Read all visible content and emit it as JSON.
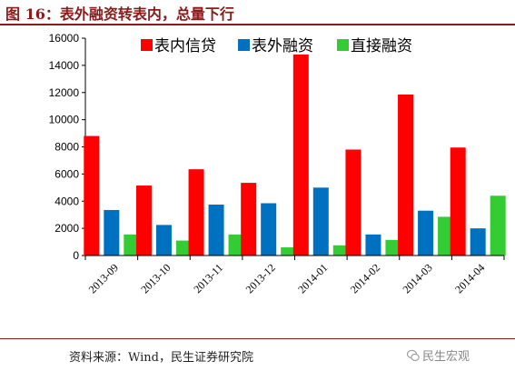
{
  "title": "图 16：表外融资转表内，总量下行",
  "source": "资料来源：Wind，民生证券研究院",
  "watermark": "民生宏观",
  "chart_data": {
    "type": "bar",
    "title": "",
    "xlabel": "",
    "ylabel": "",
    "ylim": [
      0,
      16000
    ],
    "yticks": [
      0,
      2000,
      4000,
      6000,
      8000,
      10000,
      12000,
      14000,
      16000
    ],
    "grid": false,
    "legend_position": "top-right",
    "categories": [
      "2013-09",
      "2013-10",
      "2013-11",
      "2013-12",
      "2014-01",
      "2014-02",
      "2014-03",
      "2014-04"
    ],
    "series": [
      {
        "name": "表内信贷",
        "color": "#FF0000",
        "values": [
          8800,
          5150,
          6350,
          5350,
          14800,
          7800,
          11850,
          7950
        ]
      },
      {
        "name": "表外融资",
        "color": "#0070C0",
        "values": [
          3350,
          2250,
          3750,
          3850,
          5000,
          1550,
          3300,
          2000
        ]
      },
      {
        "name": "直接融资",
        "color": "#33CC33",
        "values": [
          1550,
          1100,
          1550,
          600,
          750,
          1150,
          2850,
          4400
        ]
      }
    ]
  }
}
